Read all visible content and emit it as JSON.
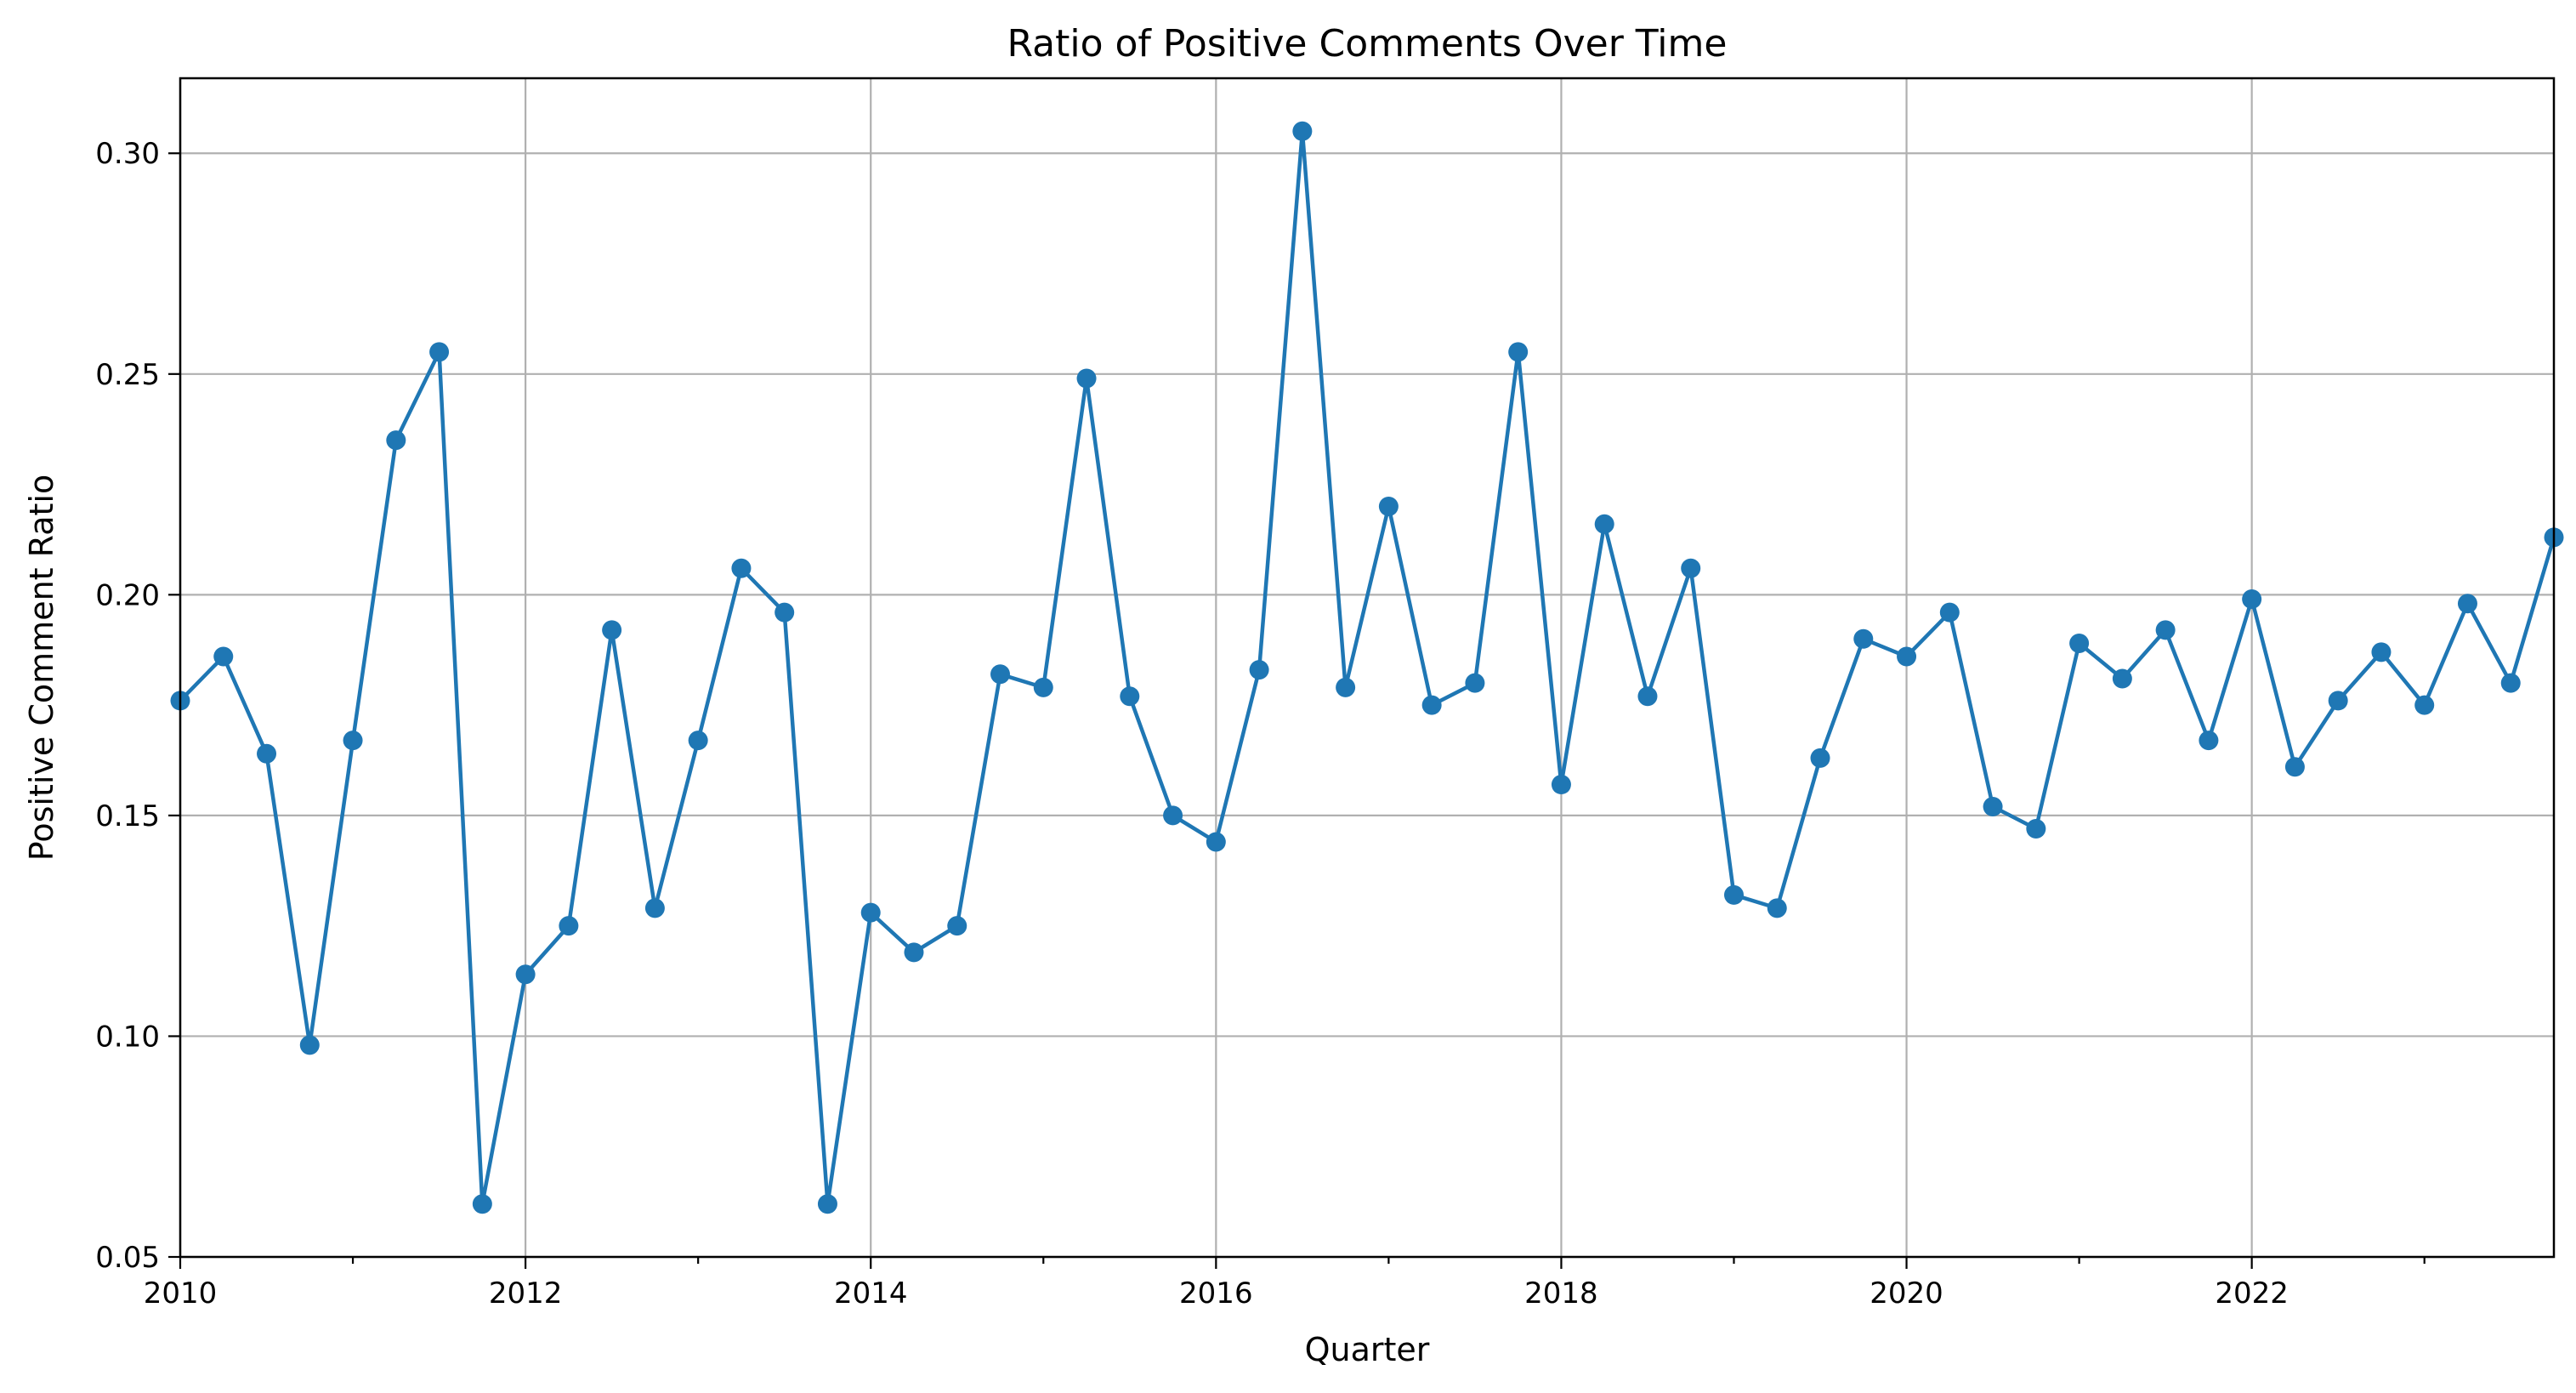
{
  "chart_data": {
    "type": "line",
    "title": "Ratio of Positive Comments Over Time",
    "xlabel": "Quarter",
    "ylabel": "Positive Comment Ratio",
    "xlim": [
      2010.0,
      2023.75
    ],
    "ylim": [
      0.05,
      0.317
    ],
    "x_ticks": [
      2010,
      2012,
      2014,
      2016,
      2018,
      2020,
      2022
    ],
    "y_ticks": [
      0.05,
      0.1,
      0.15,
      0.2,
      0.25,
      0.3
    ],
    "y_tick_labels": [
      "0.05",
      "0.10",
      "0.15",
      "0.20",
      "0.25",
      "0.30"
    ],
    "grid": true,
    "color": "#1f77b4",
    "marker": "circle",
    "series": [
      {
        "x": [
          2010.0,
          2010.25,
          2010.5,
          2010.75,
          2011.0,
          2011.25,
          2011.5,
          2011.75,
          2012.0,
          2012.25,
          2012.5,
          2012.75,
          2013.0,
          2013.25,
          2013.5,
          2013.75,
          2014.0,
          2014.25,
          2014.5,
          2014.75,
          2015.0,
          2015.25,
          2015.5,
          2015.75,
          2016.0,
          2016.25,
          2016.5,
          2016.75,
          2017.0,
          2017.25,
          2017.5,
          2017.75,
          2018.0,
          2018.25,
          2018.5,
          2018.75,
          2019.0,
          2019.25,
          2019.5,
          2019.75,
          2020.0,
          2020.25,
          2020.5,
          2020.75,
          2021.0,
          2021.25,
          2021.5,
          2021.75,
          2022.0,
          2022.25,
          2022.5,
          2022.75,
          2023.0,
          2023.25,
          2023.5,
          2023.75
        ],
        "y": [
          0.176,
          0.186,
          0.164,
          0.098,
          0.167,
          0.235,
          0.255,
          0.062,
          0.114,
          0.125,
          0.192,
          0.129,
          0.167,
          0.206,
          0.196,
          0.062,
          0.128,
          0.119,
          0.125,
          0.182,
          0.179,
          0.249,
          0.177,
          0.15,
          0.144,
          0.183,
          0.305,
          0.179,
          0.22,
          0.175,
          0.18,
          0.255,
          0.157,
          0.216,
          0.177,
          0.206,
          0.132,
          0.129,
          0.163,
          0.19,
          0.186,
          0.196,
          0.152,
          0.147,
          0.189,
          0.181,
          0.192,
          0.167,
          0.199,
          0.161,
          0.176,
          0.187,
          0.175,
          0.198,
          0.18,
          0.213
        ]
      }
    ]
  }
}
